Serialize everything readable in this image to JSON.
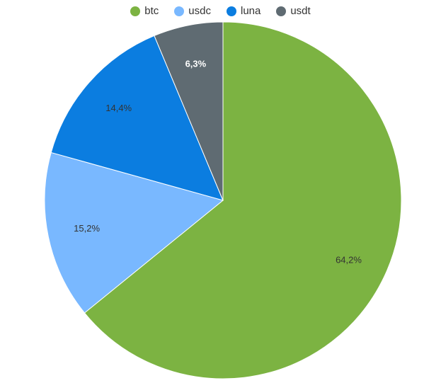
{
  "chart_data": {
    "type": "pie",
    "slices": [
      {
        "name": "btc",
        "value": 64.2,
        "label": "64,2%",
        "color": "#7cb342"
      },
      {
        "name": "usdc",
        "value": 15.2,
        "label": "15,2%",
        "color": "#79b8ff"
      },
      {
        "name": "luna",
        "value": 14.4,
        "label": "14,4%",
        "color": "#0b7de0"
      },
      {
        "name": "usdt",
        "value": 6.3,
        "label": "6,3%",
        "color": "#5f6b72"
      }
    ],
    "legend_position": "top"
  }
}
